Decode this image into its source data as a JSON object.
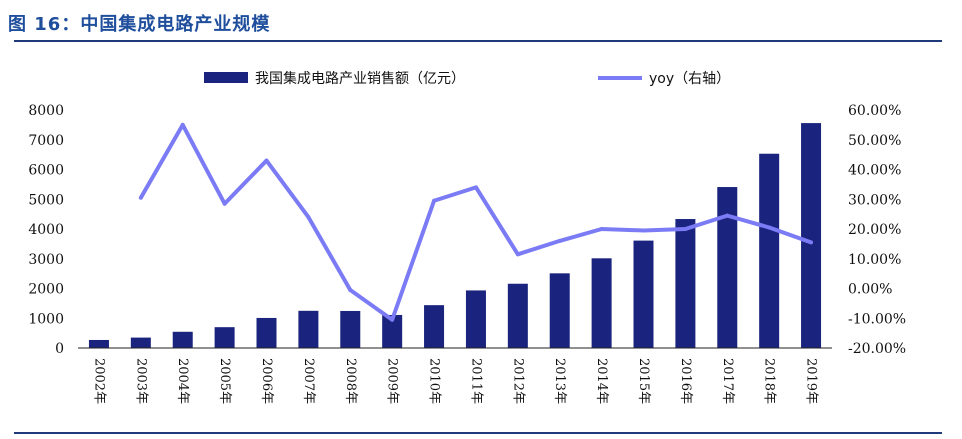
{
  "figure": {
    "title": "图 16：中国集成电路产业规模"
  },
  "chart_data": {
    "type": "bar",
    "categories": [
      "2002年",
      "2003年",
      "2004年",
      "2005年",
      "2006年",
      "2007年",
      "2008年",
      "2009年",
      "2010年",
      "2011年",
      "2012年",
      "2013年",
      "2014年",
      "2015年",
      "2016年",
      "2017年",
      "2018年",
      "2019年"
    ],
    "series": [
      {
        "name": "我国集成电路产业销售额（亿元）",
        "type": "bar",
        "axis": "left",
        "color": "#1a237e",
        "values": [
          270,
          350,
          545,
          700,
          1010,
          1250,
          1245,
          1110,
          1440,
          1935,
          2160,
          2510,
          3015,
          3610,
          4335,
          5410,
          6530,
          7560
        ]
      },
      {
        "name": "yoy（右轴）",
        "type": "line",
        "axis": "right",
        "color": "#7b7bf5",
        "values": [
          null,
          30.5,
          55.0,
          28.5,
          43.0,
          24.0,
          -0.5,
          -10.5,
          29.5,
          34.0,
          11.5,
          16.0,
          20.0,
          19.5,
          20.0,
          24.5,
          20.5,
          15.5
        ]
      }
    ],
    "y_left": {
      "range": [
        0,
        8000
      ],
      "ticks": [
        "0",
        "1000",
        "2000",
        "3000",
        "4000",
        "5000",
        "6000",
        "7000",
        "8000"
      ]
    },
    "y_right": {
      "range": [
        -20,
        60
      ],
      "ticks": [
        "-20.00%",
        "-10.00%",
        "0.00%",
        "10.00%",
        "20.00%",
        "30.00%",
        "40.00%",
        "50.00%",
        "60.00%"
      ]
    },
    "grid": false,
    "legend_position": "top"
  }
}
